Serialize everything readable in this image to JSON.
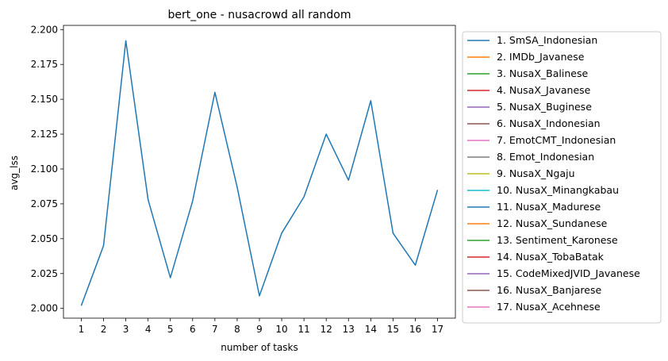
{
  "chart_data": {
    "type": "line",
    "title": "bert_one - nusacrowd all random",
    "xlabel": "number of tasks",
    "ylabel": "avg_lss",
    "x": [
      1,
      2,
      3,
      4,
      5,
      6,
      7,
      8,
      9,
      10,
      11,
      12,
      13,
      14,
      15,
      16,
      17
    ],
    "xticks": [
      "1",
      "2",
      "3",
      "4",
      "5",
      "6",
      "7",
      "8",
      "9",
      "10",
      "11",
      "12",
      "13",
      "14",
      "15",
      "16",
      "17"
    ],
    "ylim": [
      1.993,
      2.203
    ],
    "yticks": [
      2.0,
      2.025,
      2.05,
      2.075,
      2.1,
      2.125,
      2.15,
      2.175,
      2.2
    ],
    "ytick_labels": [
      "2.000",
      "2.025",
      "2.050",
      "2.075",
      "2.100",
      "2.125",
      "2.150",
      "2.175",
      "2.200"
    ],
    "grid": false,
    "legend_position": "outside-right",
    "series": [
      {
        "name": "1. SmSA_Indonesian",
        "color": "#1f77b4",
        "values": [
          2.002,
          2.045,
          2.192,
          2.078,
          2.022,
          2.077,
          2.155,
          2.087,
          2.009,
          2.054,
          2.08,
          2.125,
          2.092,
          2.149,
          2.054,
          2.031,
          2.085
        ]
      }
    ],
    "legend": [
      {
        "label": "1. SmSA_Indonesian",
        "color": "#1f77b4"
      },
      {
        "label": "2. IMDb_Javanese",
        "color": "#ff7f0e"
      },
      {
        "label": "3. NusaX_Balinese",
        "color": "#2ca02c"
      },
      {
        "label": "4. NusaX_Javanese",
        "color": "#d62728"
      },
      {
        "label": "5. NusaX_Buginese",
        "color": "#9467bd"
      },
      {
        "label": "6. NusaX_Indonesian",
        "color": "#8c564b"
      },
      {
        "label": "7. EmotCMT_Indonesian",
        "color": "#e377c2"
      },
      {
        "label": "8. Emot_Indonesian",
        "color": "#7f7f7f"
      },
      {
        "label": "9. NusaX_Ngaju",
        "color": "#bcbd22"
      },
      {
        "label": "10. NusaX_Minangkabau",
        "color": "#17becf"
      },
      {
        "label": "11. NusaX_Madurese",
        "color": "#1f77b4"
      },
      {
        "label": "12. NusaX_Sundanese",
        "color": "#ff7f0e"
      },
      {
        "label": "13. Sentiment_Karonese",
        "color": "#2ca02c"
      },
      {
        "label": "14. NusaX_TobaBatak",
        "color": "#d62728"
      },
      {
        "label": "15. CodeMixedJVID_Javanese",
        "color": "#9467bd"
      },
      {
        "label": "16. NusaX_Banjarese",
        "color": "#8c564b"
      },
      {
        "label": "17. NusaX_Acehnese",
        "color": "#e377c2"
      }
    ]
  }
}
